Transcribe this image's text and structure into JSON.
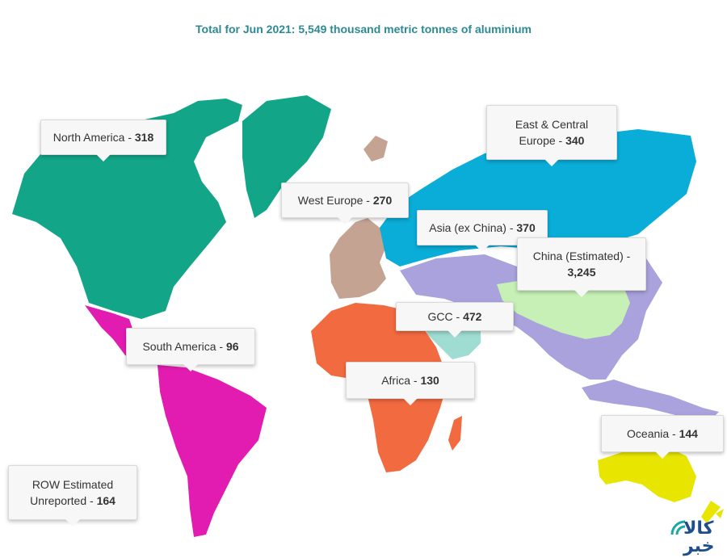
{
  "title": "Total for Jun 2021: 5,549 thousand metric tonnes of aluminium",
  "regions": [
    {
      "id": "north-america",
      "name": "North America",
      "value": "318",
      "color": "#12a588"
    },
    {
      "id": "east-central-europe",
      "name": "East & Central Europe",
      "value": "340",
      "color": "#0aadd8"
    },
    {
      "id": "west-europe",
      "name": "West Europe",
      "value": "270",
      "color": "#c4a393"
    },
    {
      "id": "asia-ex-china",
      "name": "Asia (ex China)",
      "value": "370",
      "color": "#a9a2dc"
    },
    {
      "id": "china",
      "name": "China (Estimated)",
      "value": "3,245",
      "color": "#c6f0b5"
    },
    {
      "id": "gcc",
      "name": "GCC",
      "value": "472",
      "color": "#9fdcd2"
    },
    {
      "id": "south-america",
      "name": "South America",
      "value": "96",
      "color": "#e21cb1"
    },
    {
      "id": "africa",
      "name": "Africa",
      "value": "130",
      "color": "#f26a40"
    },
    {
      "id": "oceania",
      "name": "Oceania",
      "value": "144",
      "color": "#e8e600"
    },
    {
      "id": "row",
      "name": "ROW Estimated Unreported",
      "value": "164",
      "color": "#ffffff"
    }
  ],
  "labels": {
    "north_america": {
      "name": "North America - ",
      "value": "318"
    },
    "east_central_europe": {
      "line1": "East & Central",
      "line2": "Europe - ",
      "value": "340"
    },
    "west_europe": {
      "name": "West Europe - ",
      "value": "270"
    },
    "asia_ex_china": {
      "name": "Asia (ex China) - ",
      "value": "370"
    },
    "china": {
      "line1": "China (Estimated) -",
      "value": "3,245"
    },
    "gcc": {
      "name": "GCC - ",
      "value": "472"
    },
    "south_america": {
      "name": "South America - ",
      "value": "96"
    },
    "africa": {
      "name": "Africa - ",
      "value": "130"
    },
    "oceania": {
      "name": "Oceania - ",
      "value": "144"
    },
    "row": {
      "line1": "ROW Estimated",
      "line2": "Unreported - ",
      "value": "164"
    }
  },
  "logo": {
    "text": "کالا خبر"
  }
}
